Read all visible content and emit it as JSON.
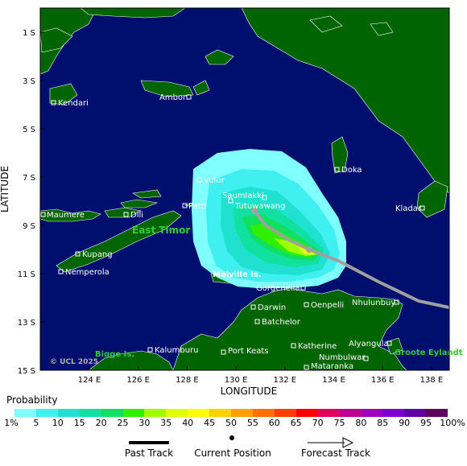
{
  "map": {
    "copyright": "© UCL 2025",
    "x_axis_title": "LONGITUDE",
    "y_axis_title": "LATITUDE",
    "lon_ticks": [
      "124 E",
      "126 E",
      "128 E",
      "130 E",
      "132 E",
      "134 E",
      "136 E",
      "138 E"
    ],
    "lat_ticks": [
      "1 S",
      "3 S",
      "5 S",
      "7 S",
      "9 S",
      "11 S",
      "13 S",
      "15 S"
    ],
    "colors": {
      "ocean": "#000f6e",
      "land": "#006400",
      "track": "#a0a0a0",
      "city_text": "#ffffff",
      "region_text": "#33cc33"
    },
    "places": {
      "kendari": "Kendari",
      "ambon": "Ambon",
      "doka": "Doka",
      "vulur": "Vulur",
      "saumlakki": "Saumlakki",
      "tutuwawang": "Tutuwawang",
      "patti": "Patti",
      "kladar": "Kladar",
      "maumere": "Maumere",
      "dili": "Dili",
      "kupang": "Kupang",
      "nemperola": "Nemperola",
      "melville": "Melville Is.",
      "gorgenella": "Gorgenella",
      "darwin": "Darwin",
      "oenpelli": "Oenpelli",
      "nhulunbuy": "Nhulunbuy",
      "batchelor": "Batchelor",
      "katherine": "Katherine",
      "alyangula": "Alyangula",
      "numbulwar": "Numbulwar",
      "mataranka": "Mataranka",
      "port_keats": "Port Keats",
      "kalumburu": "Kalumburu"
    },
    "regions": {
      "east_timor": "East Timor",
      "bigge": "Bigge Is.",
      "groote": "Groote Eylandt"
    }
  },
  "legend": {
    "title": "Probability",
    "labels": [
      "1%",
      "5",
      "10",
      "15",
      "20",
      "25",
      "30",
      "35",
      "40",
      "45",
      "50",
      "55",
      "60",
      "65",
      "70",
      "75",
      "80",
      "85",
      "90",
      "95",
      "100%"
    ],
    "colors": [
      "#80ffff",
      "#40f0f0",
      "#20e0d0",
      "#10e0a0",
      "#10e060",
      "#30f000",
      "#a0ff00",
      "#e0ff00",
      "#ffff00",
      "#ffd000",
      "#ffa000",
      "#ff7000",
      "#ff4000",
      "#ff0000",
      "#e00060",
      "#c00090",
      "#a000c0",
      "#8000d0",
      "#6000a0",
      "#600060"
    ]
  },
  "key": {
    "past_track": "Past Track",
    "current_position": "Current Position",
    "forecast_track": "Forecast Track"
  }
}
